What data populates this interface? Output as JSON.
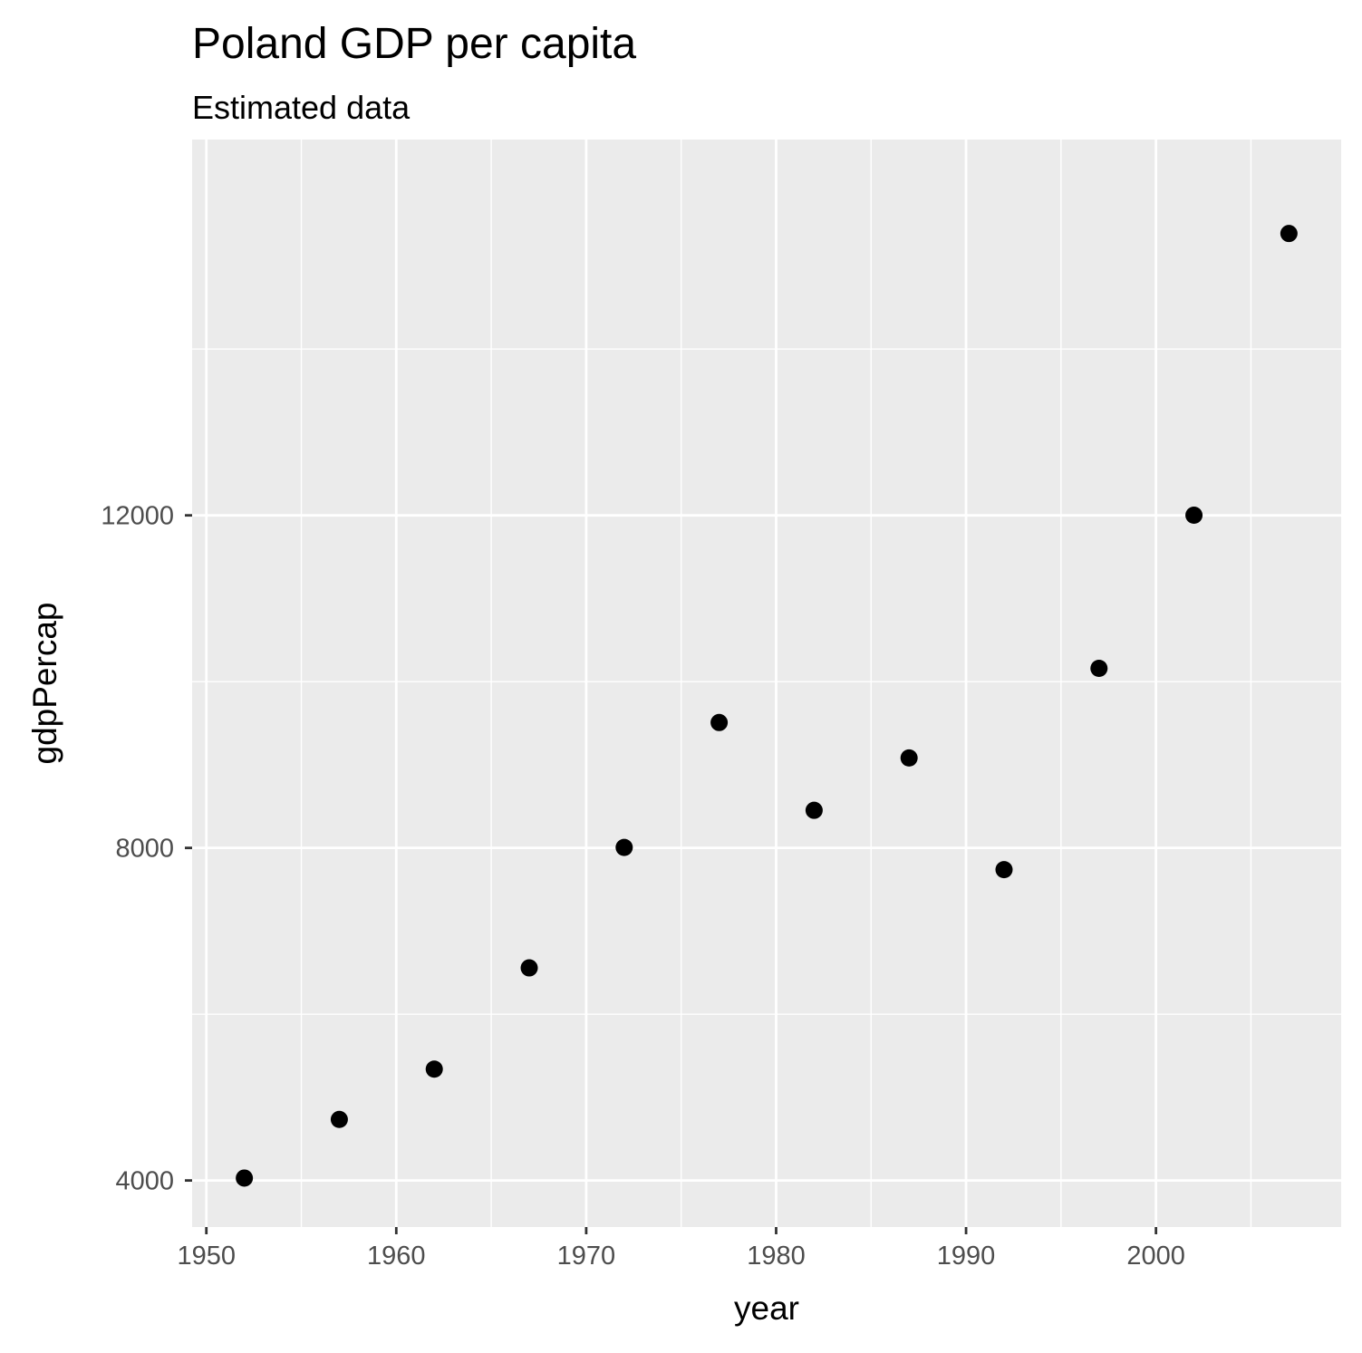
{
  "chart_data": {
    "type": "scatter",
    "title": "Poland GDP per capita",
    "subtitle": "Estimated data",
    "xlabel": "year",
    "ylabel": "gdpPercap",
    "xlim": [
      1949.25,
      2009.75
    ],
    "ylim": [
      3440,
      16520
    ],
    "x_ticks": [
      1950,
      1960,
      1970,
      1980,
      1990,
      2000
    ],
    "x_tick_labels": [
      "1950",
      "1960",
      "1970",
      "1980",
      "1990",
      "2000"
    ],
    "x_minor_ticks": [
      1955,
      1965,
      1975,
      1985,
      1995,
      2005
    ],
    "y_ticks": [
      4000,
      8000,
      12000
    ],
    "y_tick_labels": [
      "4000",
      "8000",
      "12000"
    ],
    "y_minor_ticks": [
      6000,
      10000,
      14000
    ],
    "grid": true,
    "colors": {
      "panel": "#ebebeb",
      "grid": "#ffffff",
      "point": "#000000",
      "tick_text": "#4d4d4d",
      "tick_mark": "#333333"
    },
    "series": [
      {
        "x": [
          1952,
          1957,
          1962,
          1967,
          1972,
          1977,
          1982,
          1987,
          1992,
          1997,
          2002,
          2007
        ],
        "y": [
          4029,
          4734,
          5339,
          6557,
          8006,
          9508,
          8452,
          9082,
          7739,
          10160,
          12002,
          15390
        ]
      }
    ]
  }
}
